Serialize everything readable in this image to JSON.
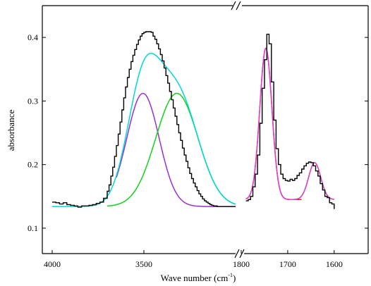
{
  "chart_data": {
    "type": "line",
    "title": "",
    "ylabel": "absorbance",
    "xlabel_main": "Wave number  (cm",
    "xlabel_sup": "-1",
    "xlabel_tail": ")",
    "ylim": [
      0.06,
      0.45
    ],
    "y_ticks": [
      0.1,
      0.2,
      0.3,
      0.4
    ],
    "y_tick_labels": [
      "0.1",
      "0.2",
      "0.3",
      "0.4"
    ],
    "grid": false,
    "legend": "none",
    "broken_x_axis": true,
    "panels": [
      {
        "xlim": [
          4000,
          3000
        ],
        "x_ticks": [
          4000,
          3500
        ],
        "x_tick_labels": [
          "4000",
          "3500"
        ]
      },
      {
        "xlim": [
          1800,
          1580
        ],
        "x_ticks": [
          1800,
          1700,
          1600
        ],
        "x_tick_labels": [
          "1800",
          "1700",
          "1600"
        ]
      }
    ],
    "baseline": 0.134,
    "series": [
      {
        "kind": "gaussian",
        "color": "#9a2fd0",
        "panel": 0,
        "x_range": [
          3650,
          3000
        ],
        "center": 3505,
        "amplitude": 0.178,
        "sigma": 88,
        "offset": 0.134
      },
      {
        "kind": "gaussian",
        "color": "#12d21a",
        "panel": 0,
        "x_range": [
          3700,
          3000
        ],
        "center": 3320,
        "amplitude": 0.178,
        "sigma": 115,
        "offset": 0.134
      },
      {
        "kind": "gaussian-sum",
        "color": "#00d8d8",
        "panel": 0,
        "x_range": [
          4000,
          3000
        ],
        "components": [
          {
            "center": 3505,
            "amplitude": 0.178,
            "sigma": 88
          },
          {
            "center": 3320,
            "amplitude": 0.178,
            "sigma": 115
          }
        ],
        "offset": 0.134
      },
      {
        "kind": "experimental",
        "color": "#000000",
        "panel": 0,
        "points": [
          [
            4000,
            0.141
          ],
          [
            3980,
            0.14
          ],
          [
            3960,
            0.138
          ],
          [
            3940,
            0.14
          ],
          [
            3920,
            0.137
          ],
          [
            3900,
            0.136
          ],
          [
            3880,
            0.135
          ],
          [
            3860,
            0.133
          ],
          [
            3840,
            0.135
          ],
          [
            3820,
            0.135
          ],
          [
            3800,
            0.136
          ],
          [
            3780,
            0.137
          ],
          [
            3760,
            0.139
          ],
          [
            3740,
            0.141
          ],
          [
            3720,
            0.147
          ],
          [
            3700,
            0.158
          ],
          [
            3690,
            0.168
          ],
          [
            3680,
            0.182
          ],
          [
            3670,
            0.196
          ],
          [
            3660,
            0.213
          ],
          [
            3650,
            0.23
          ],
          [
            3640,
            0.248
          ],
          [
            3630,
            0.267
          ],
          [
            3620,
            0.286
          ],
          [
            3610,
            0.305
          ],
          [
            3600,
            0.322
          ],
          [
            3590,
            0.337
          ],
          [
            3580,
            0.35
          ],
          [
            3570,
            0.362
          ],
          [
            3560,
            0.372
          ],
          [
            3550,
            0.381
          ],
          [
            3540,
            0.389
          ],
          [
            3530,
            0.396
          ],
          [
            3520,
            0.402
          ],
          [
            3510,
            0.406
          ],
          [
            3500,
            0.408
          ],
          [
            3490,
            0.409
          ],
          [
            3480,
            0.409
          ],
          [
            3470,
            0.409
          ],
          [
            3460,
            0.408
          ],
          [
            3450,
            0.402
          ],
          [
            3440,
            0.397
          ],
          [
            3430,
            0.39
          ],
          [
            3420,
            0.382
          ],
          [
            3410,
            0.373
          ],
          [
            3400,
            0.363
          ],
          [
            3390,
            0.352
          ],
          [
            3380,
            0.34
          ],
          [
            3370,
            0.328
          ],
          [
            3360,
            0.315
          ],
          [
            3350,
            0.302
          ],
          [
            3340,
            0.289
          ],
          [
            3330,
            0.276
          ],
          [
            3320,
            0.263
          ],
          [
            3310,
            0.25
          ],
          [
            3300,
            0.238
          ],
          [
            3290,
            0.226
          ],
          [
            3280,
            0.215
          ],
          [
            3270,
            0.205
          ],
          [
            3260,
            0.195
          ],
          [
            3250,
            0.186
          ],
          [
            3240,
            0.178
          ],
          [
            3230,
            0.171
          ],
          [
            3220,
            0.165
          ],
          [
            3210,
            0.159
          ],
          [
            3200,
            0.154
          ],
          [
            3190,
            0.15
          ],
          [
            3180,
            0.146
          ],
          [
            3170,
            0.143
          ],
          [
            3160,
            0.141
          ],
          [
            3150,
            0.139
          ],
          [
            3140,
            0.137
          ],
          [
            3130,
            0.136
          ],
          [
            3120,
            0.135
          ],
          [
            3110,
            0.135
          ],
          [
            3100,
            0.134
          ],
          [
            3080,
            0.134
          ],
          [
            3060,
            0.134
          ],
          [
            3040,
            0.134
          ],
          [
            3020,
            0.134
          ],
          [
            3000,
            0.134
          ]
        ]
      },
      {
        "kind": "gaussian",
        "color": "#e01e1e",
        "panel": 1,
        "x_range": [
          1790,
          1670
        ],
        "center": 1747,
        "amplitude": 0.238,
        "sigma": 13,
        "offset": 0.145
      },
      {
        "kind": "gaussian-sum",
        "color": "#e43ad0",
        "panel": 1,
        "x_range": [
          1790,
          1680
        ],
        "components": [
          {
            "center": 1747,
            "amplitude": 0.238,
            "sigma": 13
          }
        ],
        "offset": 0.145
      },
      {
        "kind": "gaussian",
        "color": "#12d21a",
        "panel": 1,
        "x_range": [
          1690,
          1600
        ],
        "center": 1642,
        "amplitude": 0.058,
        "sigma": 13,
        "offset": 0.145
      },
      {
        "kind": "gaussian-sum",
        "color": "#e43ad0",
        "panel": 1,
        "x_range": [
          1700,
          1600
        ],
        "components": [
          {
            "center": 1642,
            "amplitude": 0.058,
            "sigma": 13
          },
          {
            "center": 1747,
            "amplitude": 0.238,
            "sigma": 13
          }
        ],
        "offset": 0.145
      },
      {
        "kind": "experimental",
        "color": "#000000",
        "panel": 1,
        "points": [
          [
            1790,
            0.143
          ],
          [
            1785,
            0.145
          ],
          [
            1780,
            0.15
          ],
          [
            1775,
            0.165
          ],
          [
            1770,
            0.185
          ],
          [
            1765,
            0.215
          ],
          [
            1760,
            0.265
          ],
          [
            1755,
            0.32
          ],
          [
            1750,
            0.365
          ],
          [
            1745,
            0.405
          ],
          [
            1740,
            0.39
          ],
          [
            1735,
            0.33
          ],
          [
            1730,
            0.27
          ],
          [
            1725,
            0.225
          ],
          [
            1720,
            0.2
          ],
          [
            1715,
            0.185
          ],
          [
            1710,
            0.178
          ],
          [
            1705,
            0.175
          ],
          [
            1700,
            0.174
          ],
          [
            1695,
            0.177
          ],
          [
            1690,
            0.175
          ],
          [
            1685,
            0.178
          ],
          [
            1680,
            0.183
          ],
          [
            1675,
            0.187
          ],
          [
            1670,
            0.193
          ],
          [
            1665,
            0.198
          ],
          [
            1660,
            0.202
          ],
          [
            1655,
            0.204
          ],
          [
            1650,
            0.203
          ],
          [
            1645,
            0.198
          ],
          [
            1640,
            0.19
          ],
          [
            1635,
            0.182
          ],
          [
            1630,
            0.17
          ],
          [
            1625,
            0.16
          ],
          [
            1620,
            0.15
          ],
          [
            1615,
            0.148
          ],
          [
            1610,
            0.14
          ],
          [
            1605,
            0.138
          ],
          [
            1600,
            0.13
          ]
        ]
      }
    ]
  }
}
